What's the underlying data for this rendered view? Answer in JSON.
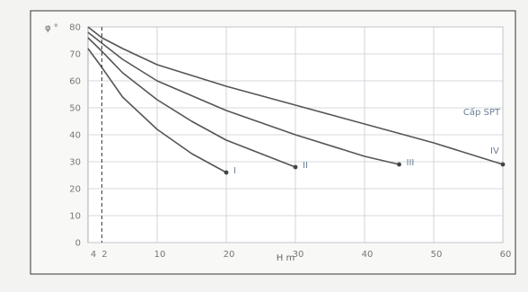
{
  "chart_data": {
    "type": "line",
    "xlabel": "H m",
    "ylabel": "φ °",
    "x_origin_label": "4",
    "annotation": "Cấp SPT",
    "xlim": [
      0,
      60
    ],
    "ylim": [
      0,
      80
    ],
    "xticks": [
      "2",
      "10",
      "20",
      "30",
      "40",
      "50",
      "60"
    ],
    "xtick_values": [
      2,
      10,
      20,
      30,
      40,
      50,
      60
    ],
    "yticks": [
      "0",
      "10",
      "20",
      "30",
      "40",
      "50",
      "60",
      "70",
      "80"
    ],
    "ytick_values": [
      0,
      10,
      20,
      30,
      40,
      50,
      60,
      70,
      80
    ],
    "grid": true,
    "reference_line_x": 2,
    "series": [
      {
        "name": "I",
        "color": "#555555",
        "x": [
          0,
          2,
          5,
          10,
          15,
          20
        ],
        "y": [
          72,
          65,
          54,
          42,
          33,
          26
        ]
      },
      {
        "name": "II",
        "color": "#555555",
        "x": [
          0,
          2,
          5,
          10,
          15,
          20,
          25,
          30
        ],
        "y": [
          76,
          71,
          63,
          53,
          45,
          38,
          33,
          28
        ]
      },
      {
        "name": "III",
        "color": "#555555",
        "x": [
          0,
          2,
          5,
          10,
          20,
          30,
          40,
          45
        ],
        "y": [
          78,
          74,
          68,
          60,
          49,
          40,
          32,
          29
        ]
      },
      {
        "name": "IV",
        "color": "#555555",
        "x": [
          0,
          2,
          5,
          10,
          20,
          30,
          40,
          50,
          60
        ],
        "y": [
          80,
          76,
          72,
          66,
          58,
          51,
          44,
          37,
          29
        ]
      }
    ]
  }
}
